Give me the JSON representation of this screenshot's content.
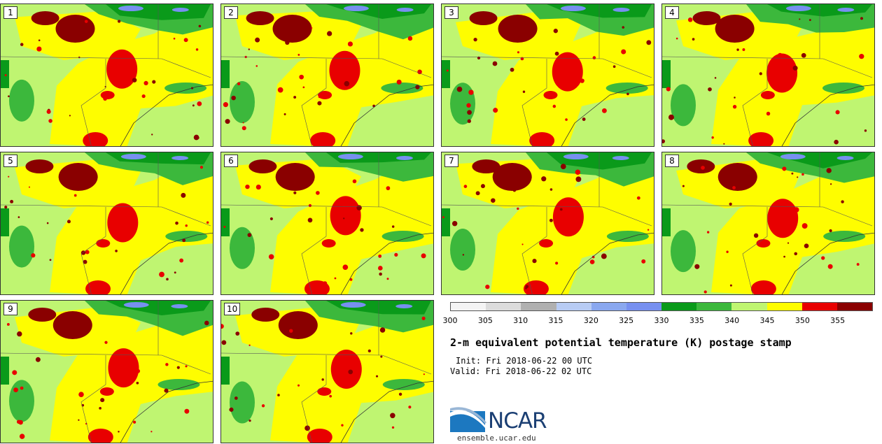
{
  "members": [
    "1",
    "2",
    "3",
    "4",
    "5",
    "6",
    "7",
    "8",
    "9",
    "10"
  ],
  "colorbar": {
    "colors": [
      "#f4f4f4",
      "#dcdcdc",
      "#b0b0b0",
      "#b8ccf4",
      "#8aa8ef",
      "#7790f0",
      "#0a9a1a",
      "#3cb83c",
      "#bff571",
      "#fefd00",
      "#e80000",
      "#8a0000"
    ],
    "tick_labels": [
      "300",
      "305",
      "310",
      "315",
      "320",
      "325",
      "330",
      "335",
      "340",
      "345",
      "350",
      "355"
    ]
  },
  "title": "2-m equivalent potential temperature (K) postage stamp",
  "init_line": "Init: Fri 2018-06-22 00 UTC",
  "valid_line": "Valid: Fri 2018-06-22 02 UTC",
  "logo": {
    "text": "NCAR",
    "url": "ensemble.ucar.edu"
  }
}
